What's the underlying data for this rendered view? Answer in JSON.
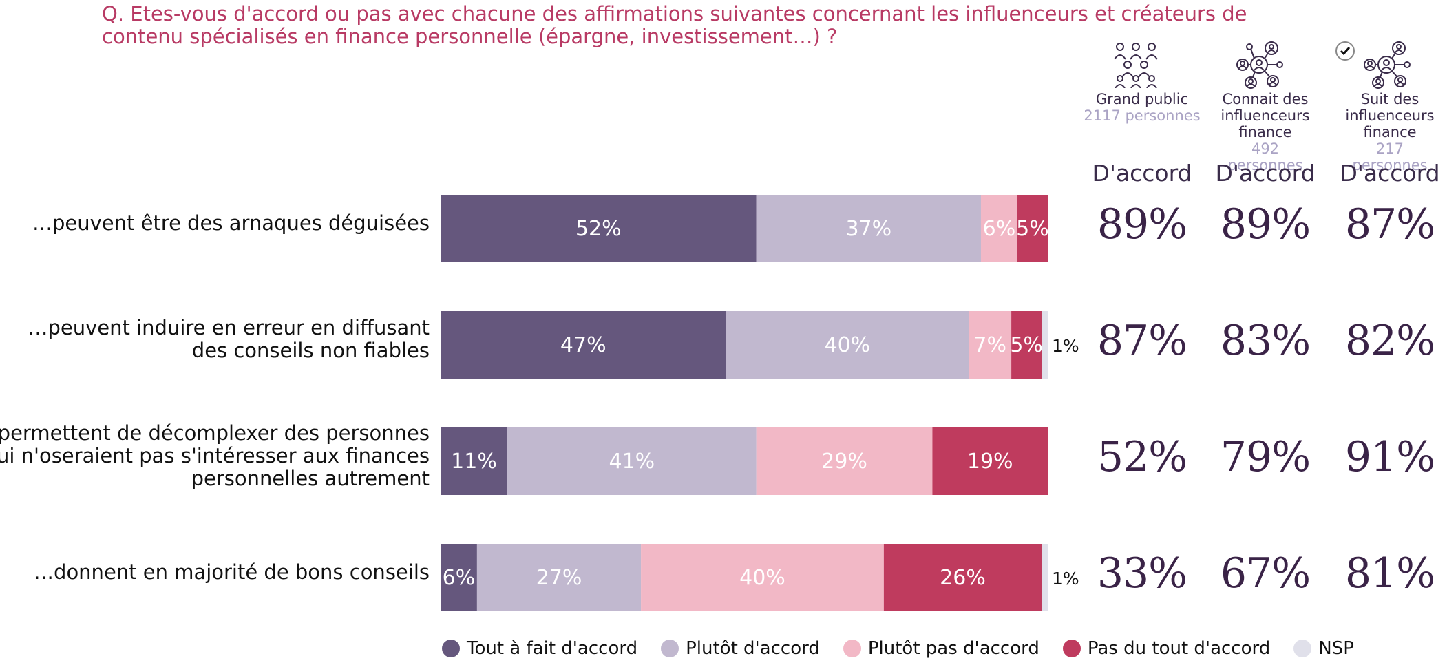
{
  "question": "Q. Etes-vous d'accord ou pas avec chacune des affirmations suivantes concernant les influenceurs et créateurs de contenu spécialisés en finance personnelle (épargne, investissement…) ?",
  "colors": {
    "tout_a_fait": "#65577d",
    "plutot": "#c1b8cf",
    "plutot_pas": "#f2b8c6",
    "pas_du_tout": "#bf3b5e",
    "nsp": "#e0e0ea",
    "question": "#b83a64"
  },
  "columns": [
    {
      "name": "Grand public",
      "count": "2117 personnes",
      "metric": "D'accord",
      "icon": "people-group-icon"
    },
    {
      "name": "Connait des influenceurs finance",
      "count": "492 personnes",
      "metric": "D'accord",
      "icon": "network-people-icon"
    },
    {
      "name": "Suit des influenceurs finance",
      "count": "217 personnes",
      "metric": "D'accord",
      "icon": "network-people-check-icon"
    }
  ],
  "chart_data": {
    "type": "bar",
    "orientation": "horizontal",
    "stacked": true,
    "categories": [
      "…peuvent être des arnaques déguisées",
      "…peuvent induire en erreur en diffusant des conseils non fiables",
      "…permettent de décomplexer des personnes qui n'oseraient pas s'intéresser aux finances personnelles autrement",
      "…donnent en majorité de bons conseils"
    ],
    "category_lines": [
      [
        "…peuvent être des arnaques déguisées"
      ],
      [
        "…peuvent induire en erreur en diffusant",
        "des conseils non fiables"
      ],
      [
        "…permettent de décomplexer des personnes",
        "qui n'oseraient pas s'intéresser aux finances",
        "personnelles autrement"
      ],
      [
        "…donnent en majorité de bons conseils"
      ]
    ],
    "series": [
      {
        "name": "Tout à fait d'accord",
        "values": [
          52,
          47,
          11,
          6
        ],
        "labels": [
          "52%",
          "47%",
          "11%",
          "6%"
        ]
      },
      {
        "name": "Plutôt d'accord",
        "values": [
          37,
          40,
          41,
          27
        ],
        "labels": [
          "37%",
          "40%",
          "41%",
          "27%"
        ]
      },
      {
        "name": "Plutôt pas d'accord",
        "values": [
          6,
          7,
          29,
          40
        ],
        "labels": [
          "6%",
          "7%",
          "29%",
          "40%"
        ]
      },
      {
        "name": "Pas du tout d'accord",
        "values": [
          5,
          5,
          19,
          26
        ],
        "labels": [
          "5%",
          "5%",
          "19%",
          "26%"
        ]
      },
      {
        "name": "NSP",
        "values": [
          0,
          1,
          0,
          1
        ],
        "labels": [
          "",
          "1%",
          "",
          "1%"
        ]
      }
    ],
    "accord_totals": [
      [
        "89%",
        "89%",
        "87%"
      ],
      [
        "87%",
        "83%",
        "82%"
      ],
      [
        "52%",
        "79%",
        "91%"
      ],
      [
        "33%",
        "67%",
        "81%"
      ]
    ]
  }
}
